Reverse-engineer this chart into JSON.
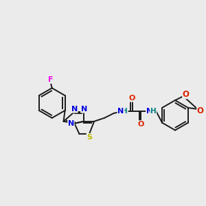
{
  "background_color": "#ebebeb",
  "bond_color": "#1a1a1a",
  "atom_colors": {
    "F": "#ee00ee",
    "N": "#0000dd",
    "S": "#bbbb00",
    "O": "#dd2200",
    "NH": "#008080",
    "C": "#1a1a1a"
  },
  "fig_w": 3.0,
  "fig_h": 3.0,
  "dpi": 100
}
